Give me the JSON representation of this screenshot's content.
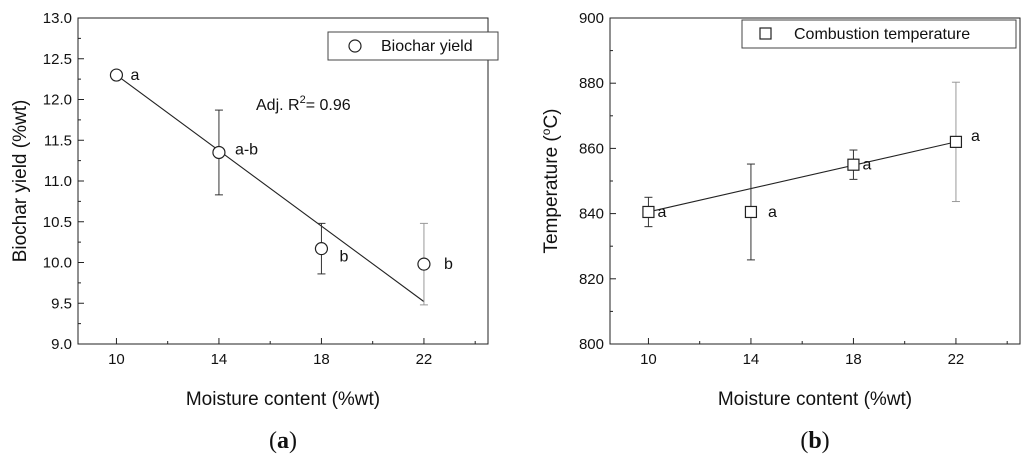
{
  "chart_data": [
    {
      "type": "scatter",
      "panel_label_pre": "(",
      "panel_label_letter": "a",
      "panel_label_post": ")",
      "xlabel": "Moisture content (%wt)",
      "ylabel": "Biochar yield (%wt)",
      "xlim": [
        8.5,
        24.5
      ],
      "ylim": [
        9.0,
        13.0
      ],
      "xticks": [
        "10",
        "14",
        "18",
        "22"
      ],
      "yticks": [
        "9.0",
        "9.5",
        "10.0",
        "10.5",
        "11.0",
        "11.5",
        "12.0",
        "12.5",
        "13.0"
      ],
      "legend": {
        "label": "Biochar yield",
        "marker": "circle",
        "position": "top-right"
      },
      "annotation_pre": "Adj. R",
      "annotation_sup": "2",
      "annotation_post": "= 0.96",
      "points": [
        {
          "x": 10,
          "y": 12.3,
          "err": 0.0,
          "label": "a"
        },
        {
          "x": 14,
          "y": 11.35,
          "err": 0.52,
          "label": "a-b"
        },
        {
          "x": 18,
          "y": 10.17,
          "err": 0.31,
          "label": "b"
        },
        {
          "x": 22,
          "y": 9.98,
          "err": 0.5,
          "label": "b"
        }
      ],
      "fit_line": {
        "x": [
          10,
          22
        ],
        "y": [
          12.3,
          9.52
        ]
      }
    },
    {
      "type": "scatter",
      "panel_label_pre": "(",
      "panel_label_letter": "b",
      "panel_label_post": ")",
      "xlabel": "Moisture content (%wt)",
      "ylabel_pre": "Temperature (",
      "ylabel_sup": "o",
      "ylabel_post": "C)",
      "xlim": [
        8.5,
        24.5
      ],
      "ylim": [
        800,
        900
      ],
      "xticks": [
        "10",
        "14",
        "18",
        "22"
      ],
      "yticks": [
        "800",
        "820",
        "840",
        "860",
        "880",
        "900"
      ],
      "legend": {
        "label": "Combustion temperature",
        "marker": "square",
        "position": "top-right"
      },
      "points": [
        {
          "x": 10,
          "y": 840.5,
          "err": 4.5,
          "label": "a"
        },
        {
          "x": 14,
          "y": 840.5,
          "err": 14.7,
          "label": "a"
        },
        {
          "x": 18,
          "y": 855,
          "err": 4.5,
          "label": "a"
        },
        {
          "x": 22,
          "y": 862,
          "err": 18.3,
          "label": "a"
        }
      ],
      "fit_line": {
        "x": [
          10,
          22
        ],
        "y": [
          840.5,
          862
        ]
      }
    }
  ]
}
